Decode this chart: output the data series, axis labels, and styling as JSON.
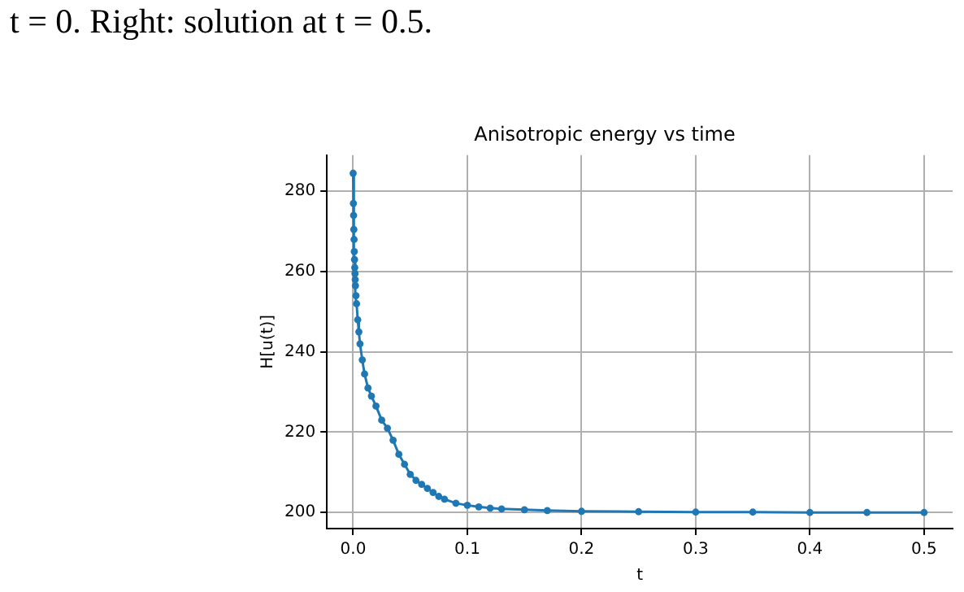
{
  "chart_data": {
    "type": "line",
    "title": "Anisotropic energy vs time",
    "xlabel": "t",
    "ylabel": "H[u(t)]",
    "annotations": [
      "t = 0. Right: solution at t = 0.5."
    ],
    "x": [
      0,
      0.0002,
      0.0004,
      0.0006,
      0.0008,
      0.001,
      0.0012,
      0.0014,
      0.0016,
      0.0018,
      0.002,
      0.0025,
      0.003,
      0.004,
      0.005,
      0.006,
      0.008,
      0.01,
      0.013,
      0.016,
      0.02,
      0.025,
      0.03,
      0.035,
      0.04,
      0.045,
      0.05,
      0.055,
      0.06,
      0.065,
      0.07,
      0.075,
      0.08,
      0.09,
      0.1,
      0.11,
      0.12,
      0.13,
      0.15,
      0.17,
      0.2,
      0.25,
      0.3,
      0.35,
      0.4,
      0.45,
      0.5
    ],
    "series": [
      {
        "color": "#1f77b4",
        "values": [
          284.5,
          277,
          274,
          270.5,
          268,
          265,
          263,
          261,
          259.5,
          258,
          256.5,
          254,
          252,
          248,
          245,
          242,
          238,
          234.5,
          231,
          229,
          226.5,
          223,
          221,
          218,
          214.5,
          212,
          209.5,
          208,
          207,
          206,
          205,
          204,
          203.3,
          202.3,
          201.8,
          201.4,
          201.1,
          200.9,
          200.7,
          200.5,
          200.3,
          200.2,
          200.1,
          200.1,
          200,
          200,
          200
        ]
      }
    ],
    "xlim": [
      -0.023,
      0.525
    ],
    "ylim": [
      196,
      289
    ],
    "xticks": [
      {
        "value": 0,
        "label": "0.0"
      },
      0.1,
      0.2,
      0.3,
      0.4,
      0.5
    ],
    "yticks": [
      200,
      220,
      240,
      260,
      280
    ],
    "grid": true,
    "legend": false,
    "marker": "circle",
    "line_style": "solid"
  }
}
